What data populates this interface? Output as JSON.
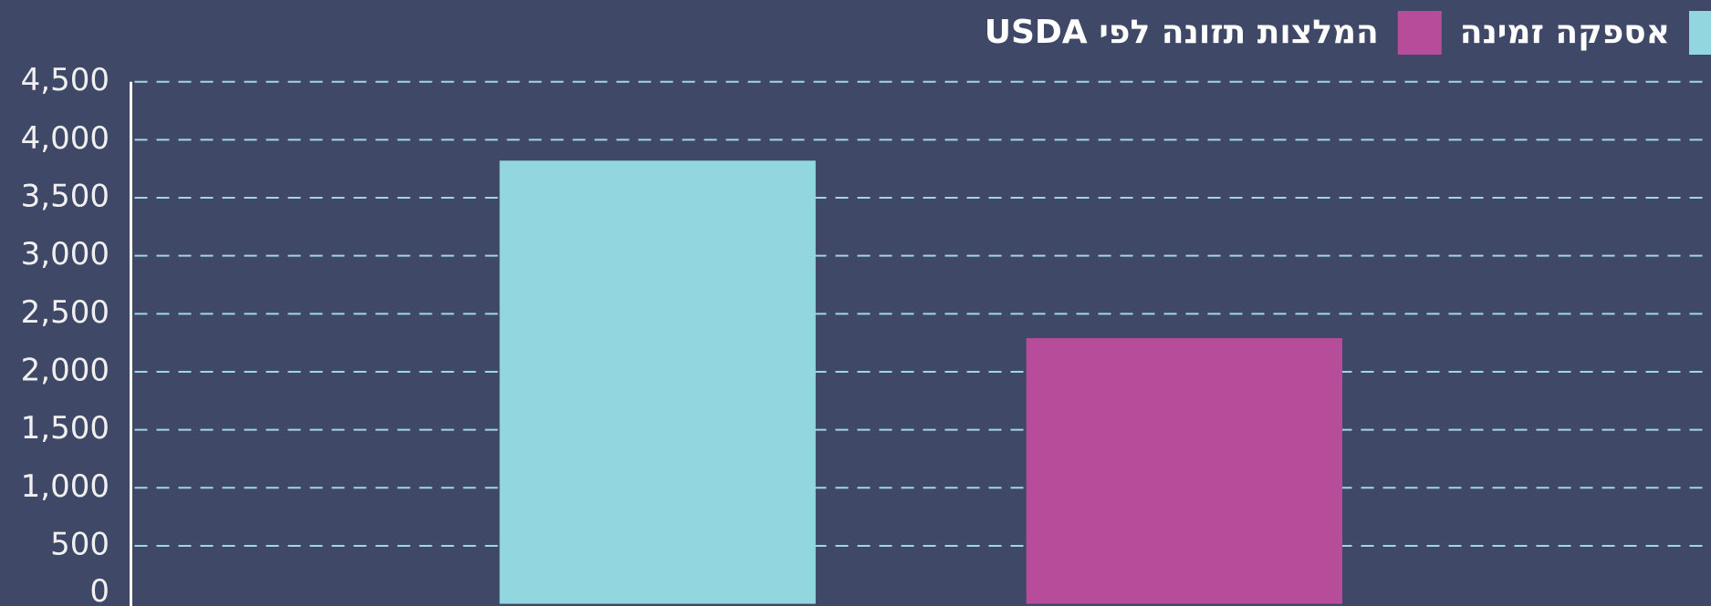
{
  "chart_data": {
    "type": "bar",
    "categories": [
      null
    ],
    "series": [
      {
        "name": "אספקה זמינה",
        "color": "#92d6df",
        "values": [
          3820
        ]
      },
      {
        "name": "המלצות תזונה לפי USDA",
        "color": "#b74d9a",
        "values": [
          2290
        ]
      }
    ],
    "ylim": [
      0,
      4500
    ],
    "yticks": [
      0,
      500,
      {
        "value": 1000,
        "label": "1,000"
      },
      {
        "value": 1500,
        "label": "1,500"
      },
      {
        "value": 2000,
        "label": "2,000"
      },
      {
        "value": 2500,
        "label": "2,500"
      },
      {
        "value": 3000,
        "label": "3,000"
      },
      {
        "value": 3500,
        "label": "3,500"
      },
      {
        "value": 4000,
        "label": "4,000"
      },
      {
        "value": 4500,
        "label": "4,500"
      }
    ],
    "grid": true,
    "legend": "top-right"
  }
}
